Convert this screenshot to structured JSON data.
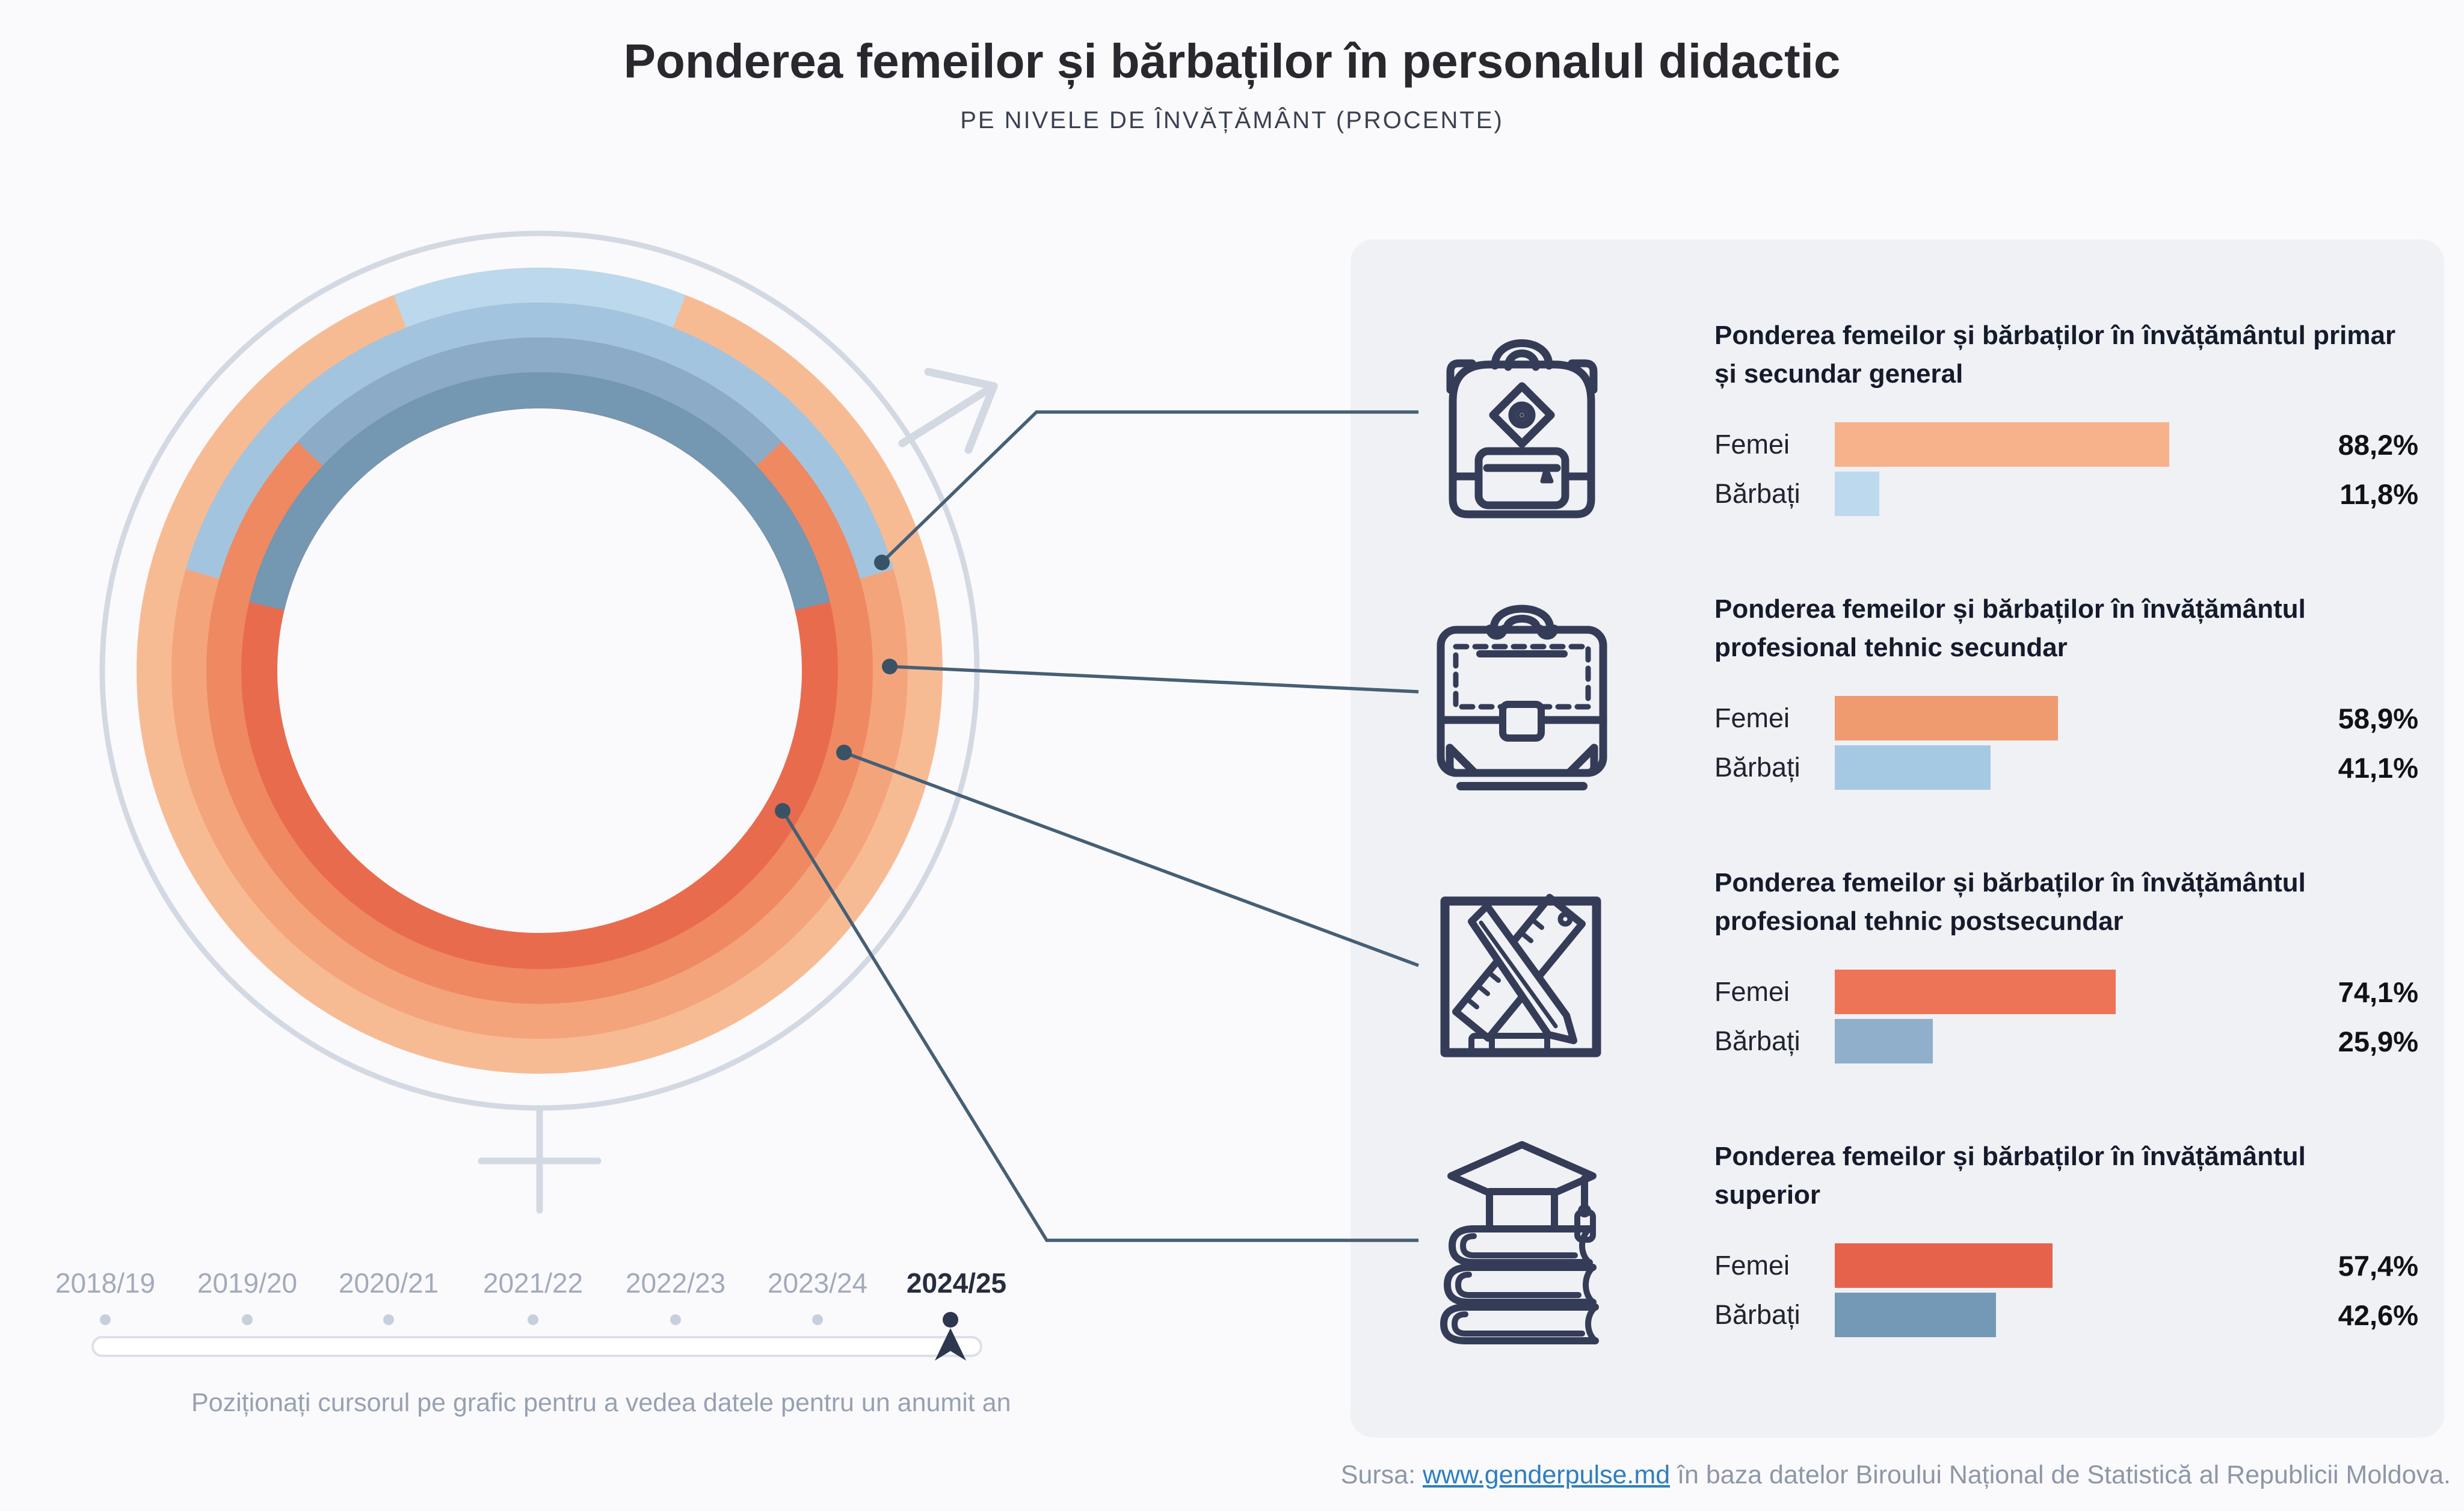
{
  "title": "Ponderea femeilor și bărbaților în personalul didactic",
  "subtitle": "PE NIVELE DE ÎNVĂȚĂMÂNT (PROCENTE)",
  "chart_data": {
    "type": "bar",
    "title": "Ponderea femeilor și bărbaților în personalul didactic",
    "subtitle": "Pe nivele de învățământ (procente)",
    "unit": "%",
    "donut": {
      "description": "Four concentric rings (outer to inner = primary/general secondary, vocational secondary, vocational post-secondary, higher education). Orange arc = women share, blue arc centered at 12 o'clock = men share.",
      "rings": [
        {
          "level": "primar și secundar general",
          "femei": 88.2,
          "barbati": 11.8,
          "femei_color": "#F7BB94",
          "barbati_color": "#BCD8EC"
        },
        {
          "level": "profesional tehnic secundar",
          "femei": 58.9,
          "barbati": 41.1,
          "femei_color": "#F4A47B",
          "barbati_color": "#A3C4DE"
        },
        {
          "level": "profesional tehnic postsecundar",
          "femei": 74.1,
          "barbati": 25.9,
          "femei_color": "#EF8962",
          "barbati_color": "#8BABC6"
        },
        {
          "level": "superior",
          "femei": 57.4,
          "barbati": 42.6,
          "femei_color": "#E96B4E",
          "barbati_color": "#7497B2"
        }
      ]
    },
    "categories": [
      "Femei",
      "Bărbați"
    ],
    "series": [
      {
        "name": "învățământul primar și secundar general",
        "values": [
          88.2,
          11.8
        ]
      },
      {
        "name": "învățământul profesional tehnic secundar",
        "values": [
          58.9,
          41.1
        ]
      },
      {
        "name": "învățământul profesional tehnic postsecundar",
        "values": [
          74.1,
          25.9
        ]
      },
      {
        "name": "învățământul superior",
        "values": [
          57.4,
          42.6
        ]
      },
      {
        "name": "axis",
        "values": [
          0,
          100
        ]
      }
    ],
    "x": [
      "2018/19",
      "2019/20",
      "2020/21",
      "2021/22",
      "2022/23",
      "2023/24",
      "2024/25"
    ],
    "legend_position": "none",
    "grid": false
  },
  "sections": [
    {
      "heading": "Ponderea femeilor și bărbaților în învățământul primar și secundar general",
      "icon": "backpack-icon",
      "rows": {
        "femei": {
          "label": "Femei",
          "value": 88.2,
          "display": "88,2%",
          "color": "#F8B28B"
        },
        "barbati": {
          "label": "Bărbați",
          "value": 11.8,
          "display": "11,8%",
          "color": "#BDD9EE"
        }
      }
    },
    {
      "heading": "Ponderea femeilor și bărbaților în învățământul profesional tehnic secundar",
      "icon": "briefcase-icon",
      "rows": {
        "femei": {
          "label": "Femei",
          "value": 58.9,
          "display": "58,9%",
          "color": "#F09A70"
        },
        "barbati": {
          "label": "Bărbați",
          "value": 41.1,
          "display": "41,1%",
          "color": "#A6C9E3"
        }
      }
    },
    {
      "heading": "Ponderea femeilor și bărbaților în învățământul profesional tehnic postsecundar",
      "icon": "pencil-ruler-icon",
      "rows": {
        "femei": {
          "label": "Femei",
          "value": 74.1,
          "display": "74,1%",
          "color": "#ED7457"
        },
        "barbati": {
          "label": "Bărbați",
          "value": 25.9,
          "display": "25,9%",
          "color": "#90AFCB"
        }
      }
    },
    {
      "heading": "Ponderea femeilor și bărbaților în învățământul superior",
      "icon": "graduation-cap-icon",
      "rows": {
        "femei": {
          "label": "Femei",
          "value": 57.4,
          "display": "57,4%",
          "color": "#E6634B"
        },
        "barbati": {
          "label": "Bărbați",
          "value": 42.6,
          "display": "42,6%",
          "color": "#7499B6"
        }
      }
    }
  ],
  "timeline": {
    "years": [
      "2018/19",
      "2019/20",
      "2020/21",
      "2021/22",
      "2022/23",
      "2023/24",
      "2024/25"
    ],
    "active_year": "2024/25",
    "hint": "Poziționați cursorul pe grafic pentru a vedea datele pentru un anumit an"
  },
  "source": {
    "label": "Sursa:",
    "link_text": "www.genderpulse.md",
    "text_after": "în baza datelor Biroului Național de Statistică al Republicii Moldova."
  },
  "colors": {
    "page_bg": "#FAFAFC",
    "panel_bg": "#EFF1F5",
    "gender_symbol": "#D3D9E3",
    "callout": "#465F75",
    "icon_stroke": "#353C57",
    "link": "#2E7EC1",
    "active_year": "#2D374E"
  }
}
